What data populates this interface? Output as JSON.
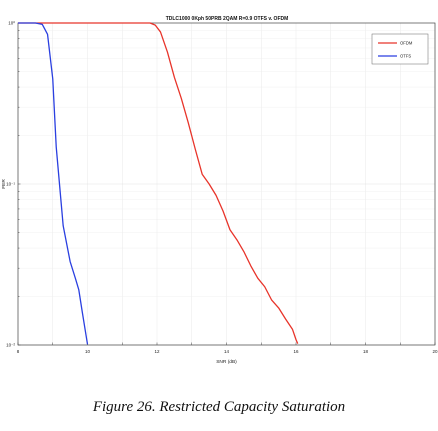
{
  "chart_data": {
    "type": "line",
    "title": "TDLC1000 0Kph 50PRB 2QAM R=0.9 OTFS v. OFDM",
    "xlabel": "SNR (dB)",
    "ylabel": "FER",
    "xlim": [
      8,
      20
    ],
    "ylim": [
      0.01,
      1
    ],
    "yscale": "log",
    "xticks": [
      "8",
      "10",
      "12",
      "14",
      "16",
      "18",
      "20"
    ],
    "yticks": [
      "10⁰",
      "10⁻¹",
      "10⁻²"
    ],
    "grid": true,
    "legend_position": "top-right",
    "series": [
      {
        "name": "OFDM",
        "color": "#e8342a",
        "x": [
          8,
          11.8,
          11.95,
          12.1,
          12.3,
          12.5,
          12.7,
          12.9,
          13.1,
          13.3,
          13.5,
          13.7,
          13.9,
          14.1,
          14.3,
          14.5,
          14.7,
          14.9,
          15.1,
          15.3,
          15.5,
          15.7,
          15.9,
          16.0,
          16.05
        ],
        "y": [
          1,
          1,
          0.97,
          0.88,
          0.66,
          0.46,
          0.34,
          0.24,
          0.165,
          0.115,
          0.1,
          0.085,
          0.068,
          0.052,
          0.045,
          0.038,
          0.031,
          0.026,
          0.023,
          0.019,
          0.017,
          0.0145,
          0.0125,
          0.0108,
          0.0102
        ]
      },
      {
        "name": "OTFS",
        "color": "#2a3fe0",
        "x": [
          8,
          8.5,
          8.7,
          8.85,
          9.0,
          9.1,
          9.3,
          9.5,
          9.65,
          9.75,
          9.85,
          10.0
        ],
        "y": [
          1,
          1,
          0.98,
          0.85,
          0.45,
          0.17,
          0.055,
          0.033,
          0.026,
          0.022,
          0.016,
          0.0101
        ]
      }
    ]
  },
  "caption": "Figure 26. Restricted Capacity Saturation"
}
